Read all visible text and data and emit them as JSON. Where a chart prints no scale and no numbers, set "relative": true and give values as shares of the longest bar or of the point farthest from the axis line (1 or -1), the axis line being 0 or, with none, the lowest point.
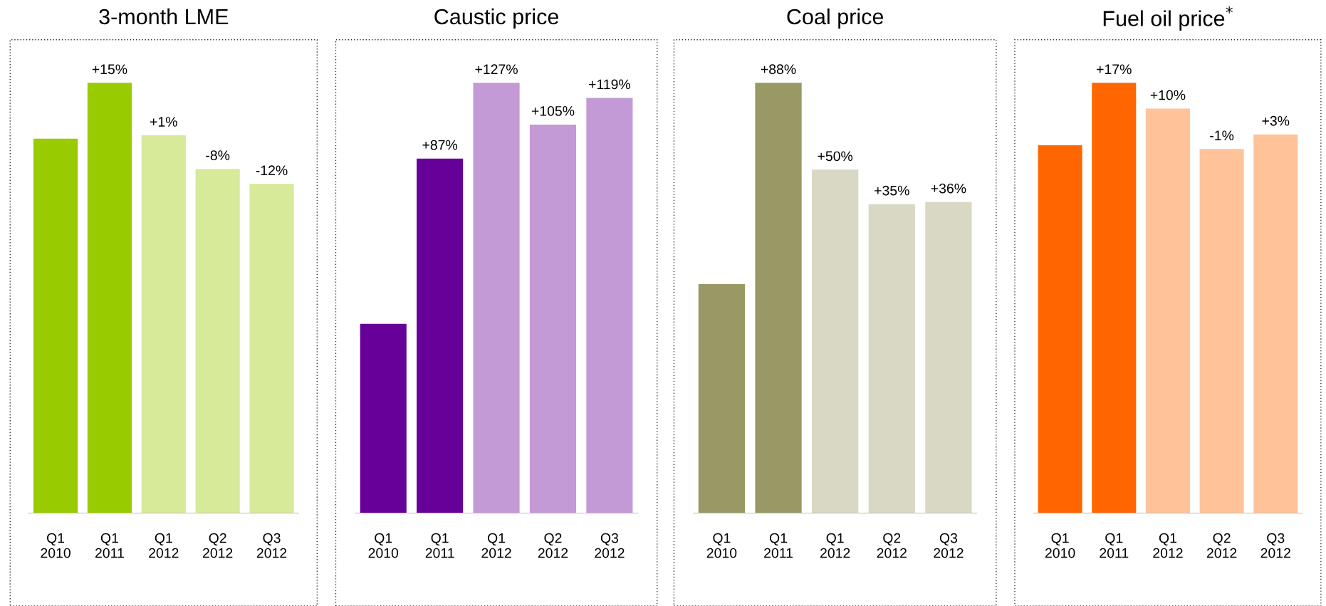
{
  "chart_data": [
    {
      "type": "bar",
      "title": "3-month LME",
      "relative": true,
      "categories": [
        "Q1\n2010",
        "Q1\n2011",
        "Q1\n2012",
        "Q2\n2012",
        "Q3\n2012"
      ],
      "values": [
        0.87,
        1,
        0.878,
        0.8,
        0.765
      ],
      "colors": [
        "#99cc00",
        "#99cc00",
        "#d6ea9a",
        "#d6ea9a",
        "#d6ea9a"
      ],
      "annotations": [
        {
          "text": "+15%",
          "x": "Q1\n2011",
          "y": 1
        },
        {
          "text": "+1%",
          "x": "Q1\n2012",
          "y": 0.878
        },
        {
          "text": "-8%",
          "x": "Q2\n2012",
          "y": 0.8
        },
        {
          "text": "-12%",
          "x": "Q3\n2012",
          "y": 0.765
        }
      ]
    },
    {
      "type": "bar",
      "title": "Caustic price",
      "relative": true,
      "categories": [
        "Q1\n2010",
        "Q1\n2011",
        "Q1\n2012",
        "Q2\n2012",
        "Q3\n2012"
      ],
      "values": [
        0.44,
        0.824,
        1,
        0.903,
        0.965
      ],
      "colors": [
        "#660099",
        "#660099",
        "#c399d6",
        "#c399d6",
        "#c399d6"
      ],
      "annotations": [
        {
          "text": "+87%",
          "x": "Q1\n2011",
          "y": 0.824
        },
        {
          "text": "+127%",
          "x": "Q1\n2012",
          "y": 1
        },
        {
          "text": "+105%",
          "x": "Q2\n2012",
          "y": 0.903
        },
        {
          "text": "+119%",
          "x": "Q3\n2012",
          "y": 0.965
        }
      ]
    },
    {
      "type": "bar",
      "title": "Coal price",
      "relative": true,
      "categories": [
        "Q1\n2010",
        "Q1\n2011",
        "Q1\n2012",
        "Q2\n2012",
        "Q3\n2012"
      ],
      "values": [
        0.532,
        1,
        0.798,
        0.718,
        0.723
      ],
      "colors": [
        "#999966",
        "#999966",
        "#d8d8c4",
        "#d8d8c4",
        "#d8d8c4"
      ],
      "annotations": [
        {
          "text": "+88%",
          "x": "Q1\n2011",
          "y": 1
        },
        {
          "text": "+50%",
          "x": "Q1\n2012",
          "y": 0.798
        },
        {
          "text": "+35%",
          "x": "Q2\n2012",
          "y": 0.718
        },
        {
          "text": "+36%",
          "x": "Q3\n2012",
          "y": 0.723
        }
      ]
    },
    {
      "type": "bar",
      "title": "Fuel oil price$^{*}$",
      "relative": true,
      "categories": [
        "Q1\n2010",
        "Q1\n2011",
        "Q1\n2012",
        "Q2\n2012",
        "Q3\n2012"
      ],
      "values": [
        0.855,
        1,
        0.94,
        0.846,
        0.88
      ],
      "colors": [
        "#ff6600",
        "#ff6600",
        "#ffc299",
        "#ffc299",
        "#ffc299"
      ],
      "annotations": [
        {
          "text": "+17%",
          "x": "Q1\n2011",
          "y": 1
        },
        {
          "text": "+10%",
          "x": "Q1\n2012",
          "y": 0.94
        },
        {
          "text": "-1%",
          "x": "Q2\n2012",
          "y": 0.846
        },
        {
          "text": "+3%",
          "x": "Q3\n2012",
          "y": 0.88
        }
      ]
    }
  ]
}
